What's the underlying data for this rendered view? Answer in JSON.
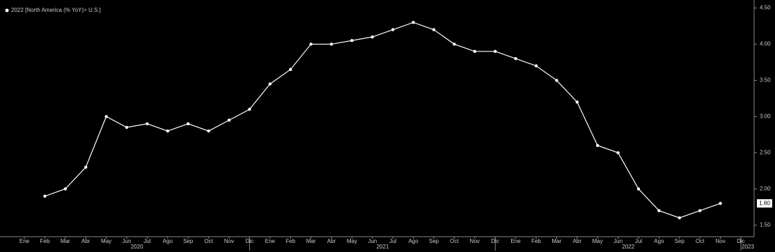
{
  "chart_data": {
    "type": "line",
    "legend": "2022 [North America (% YoY)> U.S.]",
    "categories": [
      "Ene",
      "Feb",
      "Mar",
      "Abr",
      "May",
      "Jun",
      "Jul",
      "Ago",
      "Sep",
      "Oct",
      "Nov",
      "Dic",
      "Ene",
      "Feb",
      "Mar",
      "Abr",
      "May",
      "Jun",
      "Jul",
      "Ago",
      "Sep",
      "Oct",
      "Nov",
      "Dic",
      "Ene",
      "Feb",
      "Mar",
      "Abr",
      "May",
      "Jun",
      "Jul",
      "Ago",
      "Sep",
      "Oct",
      "Nov",
      "Dic"
    ],
    "years": [
      "2020",
      "2021",
      "2022",
      "2023"
    ],
    "series": [
      {
        "name": "2022 [North America (% YoY)> U.S.]",
        "color": "#ffffff",
        "values": [
          null,
          1.9,
          2.0,
          2.3,
          3.0,
          2.85,
          2.9,
          2.8,
          2.9,
          2.8,
          2.95,
          3.1,
          3.45,
          3.65,
          4.0,
          4.0,
          4.05,
          4.1,
          4.2,
          4.3,
          4.2,
          4.0,
          3.9,
          3.9,
          3.8,
          3.7,
          3.5,
          3.2,
          2.6,
          2.5,
          2.0,
          1.7,
          1.6,
          1.7,
          1.8,
          null
        ],
        "value_labels": [
          null,
          null,
          null,
          null,
          null,
          null,
          null,
          null,
          null,
          null,
          null,
          null,
          null,
          null,
          null,
          null,
          null,
          null,
          null,
          null,
          null,
          null,
          null,
          null,
          null,
          null,
          null,
          null,
          null,
          null,
          null,
          null,
          null,
          null,
          "1.80",
          null
        ]
      }
    ],
    "ylim": [
      1.34,
      4.61
    ],
    "yticks": [
      {
        "value": 1.5,
        "label": "1.50"
      },
      {
        "value": 2.0,
        "label": "2.00"
      },
      {
        "value": 2.5,
        "label": "2.50"
      },
      {
        "value": 3.0,
        "label": "3.00"
      },
      {
        "value": 3.5,
        "label": "3.50"
      },
      {
        "value": 4.0,
        "label": "4.00"
      },
      {
        "value": 4.5,
        "label": "4.50"
      }
    ],
    "grid": false
  }
}
